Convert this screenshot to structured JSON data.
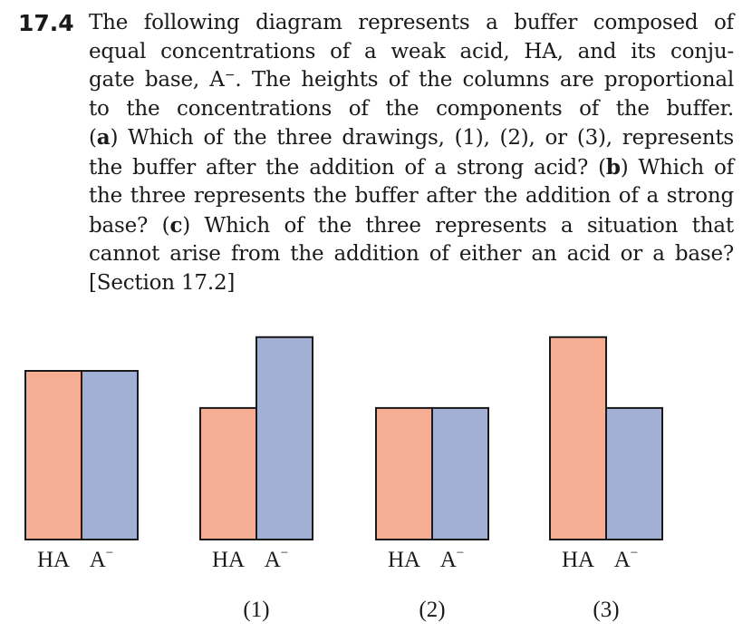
{
  "problem": {
    "number": "17.4",
    "lines": [
      "The following diagram represents a buffer composed of",
      "equal concentrations of a weak acid, HA, and its conju-",
      "gate base, A⁻. The heights of the columns are proportional",
      "to the concentrations of the components of the buffer.",
      "(a) Which of the three drawings, (1), (2), or (3), represents",
      "the buffer after the addition of a strong acid? (b) Which of",
      "the three represents the buffer after the addition of a strong",
      "base? (c) Which of the three represents a situation that",
      "cannot arise from the addition of either an acid or a base?",
      "[Section 17.2]"
    ]
  },
  "colors": {
    "ha": "#f5ae94",
    "a_minus": "#a3b0d6",
    "outline": "#1a1a1a"
  },
  "chart_data": {
    "type": "bar",
    "series_labels": [
      "HA",
      "A⁻"
    ],
    "groups": [
      {
        "caption": "",
        "values": [
          1.0,
          1.0
        ]
      },
      {
        "caption": "(1)",
        "values": [
          0.78,
          1.2
        ]
      },
      {
        "caption": "(2)",
        "values": [
          0.78,
          0.78
        ]
      },
      {
        "caption": "(3)",
        "values": [
          1.2,
          0.78
        ]
      }
    ]
  }
}
